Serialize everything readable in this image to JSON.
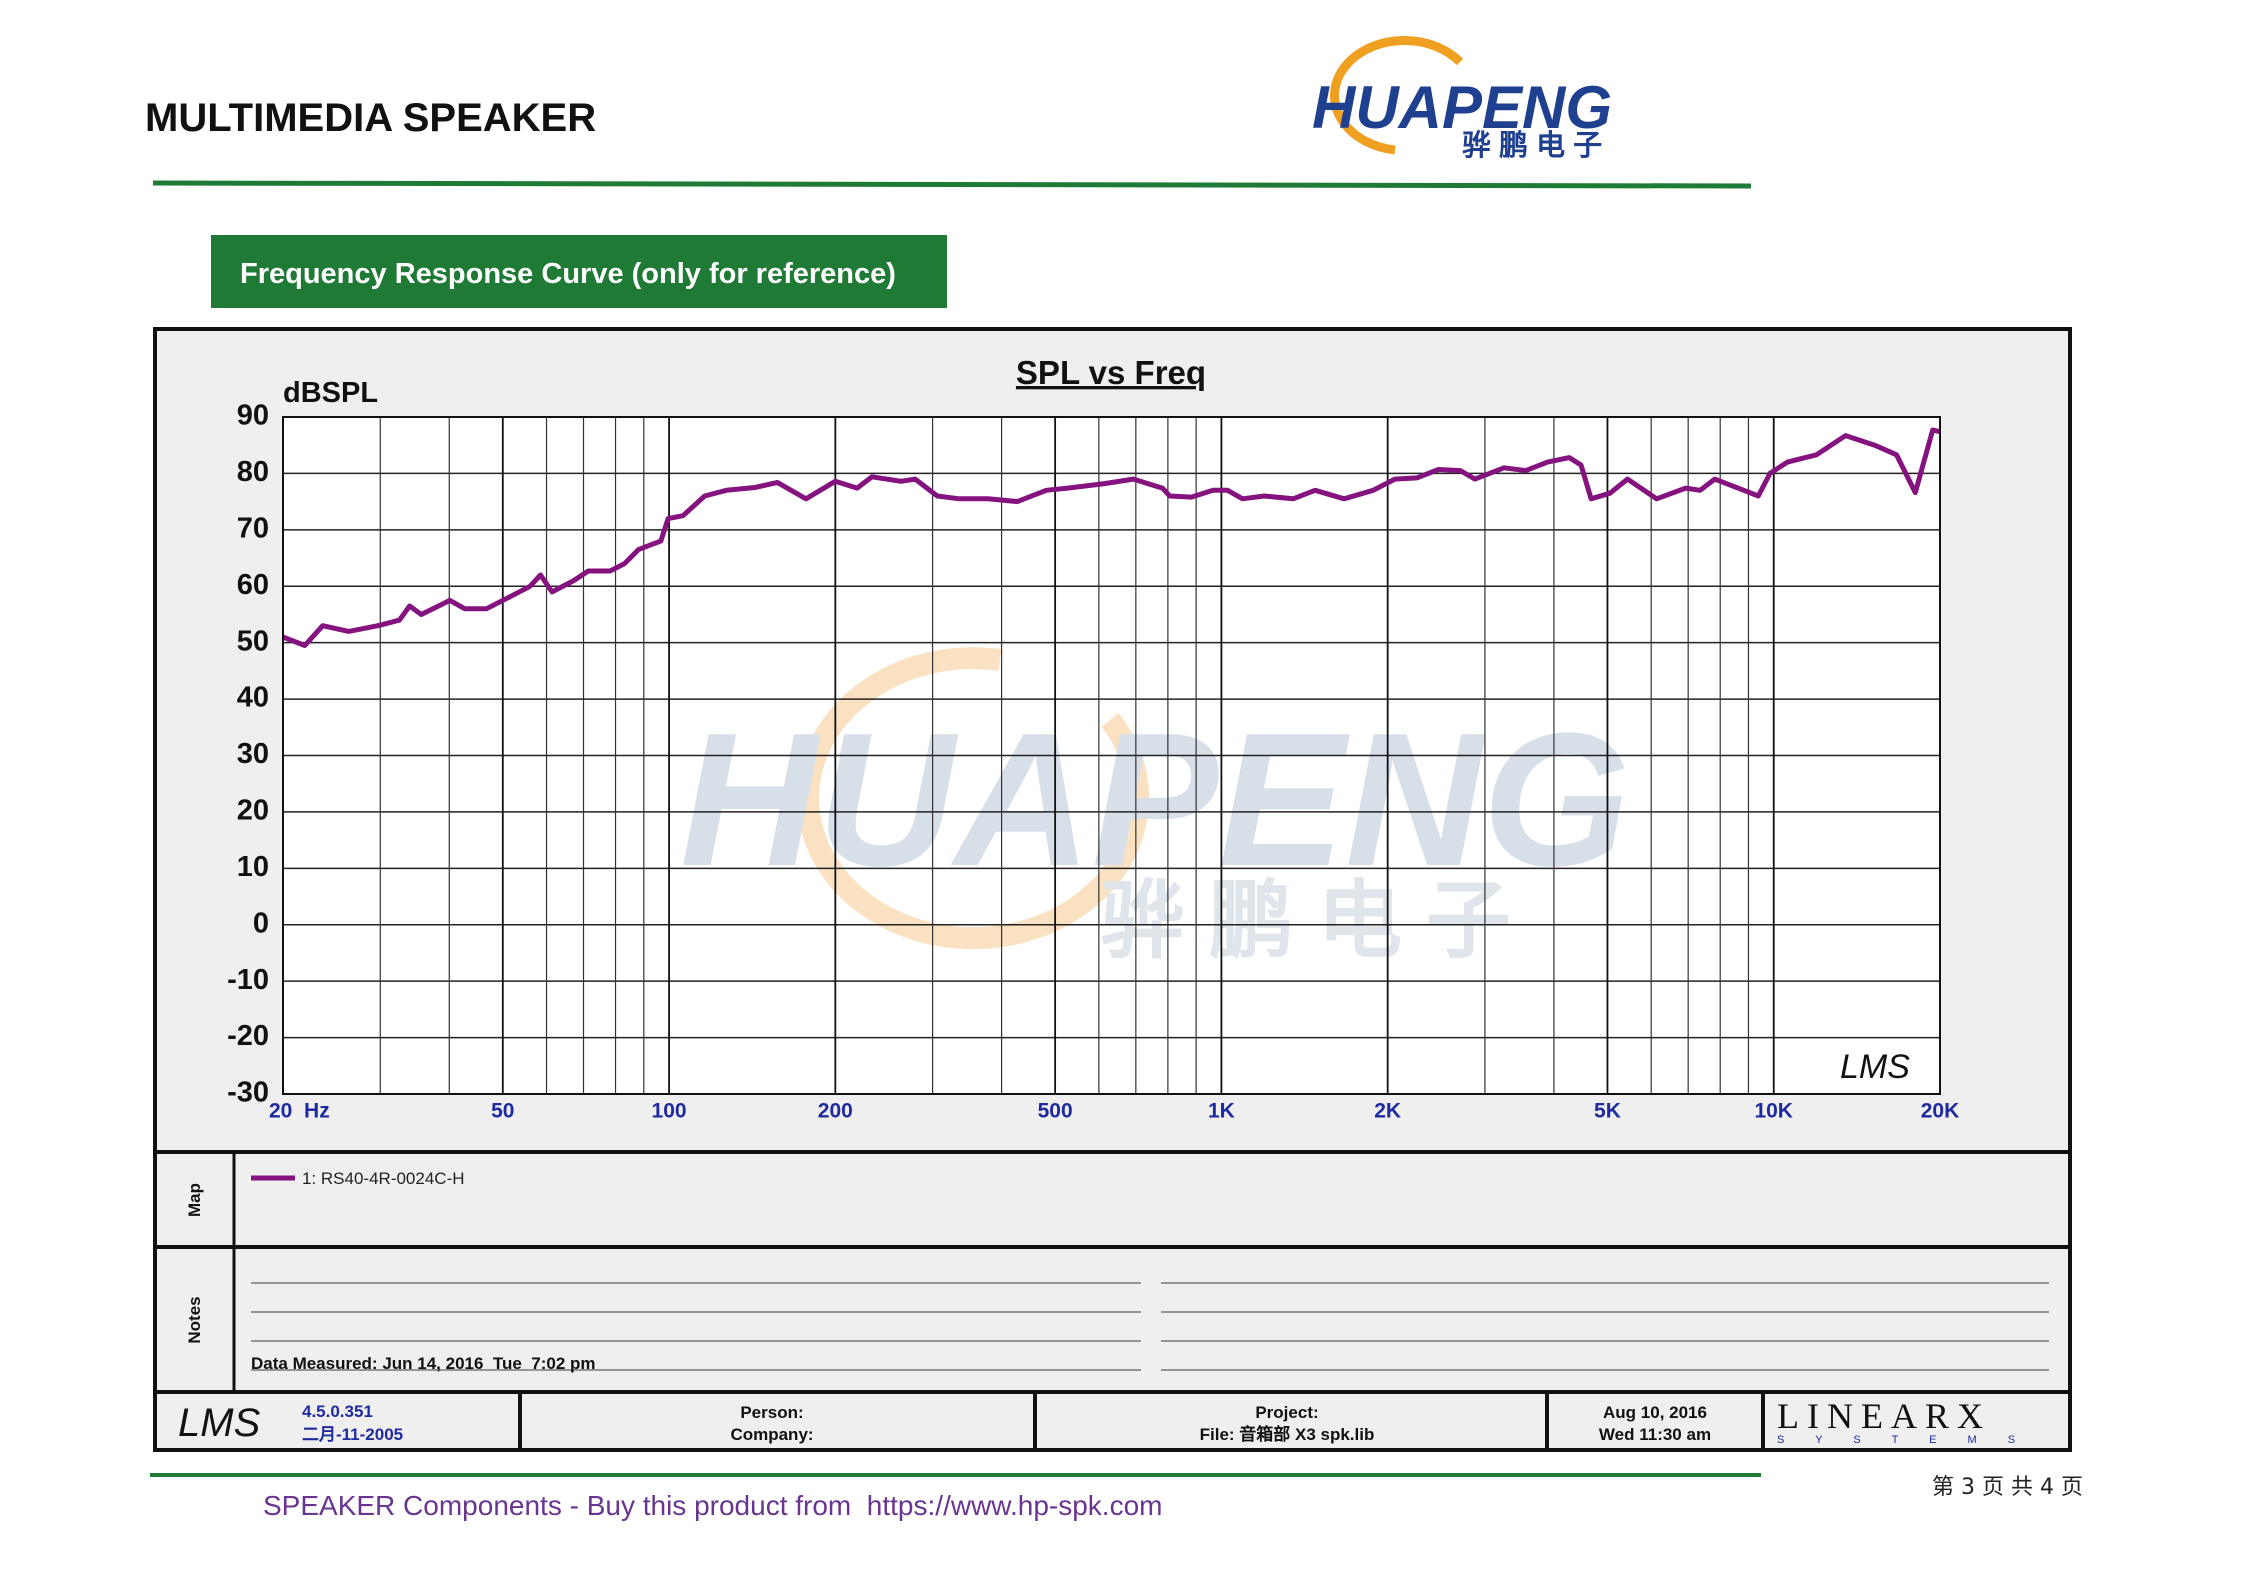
{
  "header": {
    "title": "MULTIMEDIA SPEAKER",
    "logo": "HUAPENG",
    "logo_cn": "骅 鹏 电 子"
  },
  "section_title": "Frequency Response Curve (only for reference)",
  "chart_data": {
    "type": "line",
    "title": "SPL vs Freq",
    "y_label": "dBSPL",
    "x_scale": "log",
    "minor_grid": true,
    "annotation": "LMS",
    "xlim": [
      20,
      20000
    ],
    "ylim": [
      -30,
      90
    ],
    "xticks": [
      {
        "value": 20,
        "label": "20  Hz"
      },
      50,
      100,
      200,
      500,
      {
        "value": 1000,
        "label": "1K"
      },
      {
        "value": 2000,
        "label": "2K"
      },
      {
        "value": 5000,
        "label": "5K"
      },
      {
        "value": 10000,
        "label": "10K"
      },
      {
        "value": 20000,
        "label": "20K"
      }
    ],
    "yticks": [
      -30,
      -20,
      -10,
      0,
      10,
      20,
      30,
      40,
      50,
      60,
      70,
      80,
      90
    ],
    "x": [
      20,
      21.9,
      23.6,
      26.3,
      29.7,
      32.5,
      33.9,
      35.6,
      40.1,
      42.7,
      46.7,
      51.2,
      56,
      58.5,
      61.4,
      67.2,
      71.4,
      78.2,
      83,
      88,
      96.6,
      99.6,
      106,
      116,
      127,
      143,
      157,
      177,
      200,
      219,
      233,
      263,
      279,
      306,
      335,
      378,
      427,
      482,
      527,
      614,
      693,
      782,
      806,
      882,
      966,
      1026,
      1092,
      1195,
      1349,
      1478,
      1668,
      1882,
      2061,
      2258,
      2472,
      2708,
      2877,
      3249,
      3557,
      3895,
      4265,
      4477,
      4671,
      5053,
      5436,
      6137,
      6929,
      7358,
      7818,
      8827,
      9376,
      9845,
      10586,
      11953,
      13494,
      15235,
      16681,
      18040,
      19400,
      20000
    ],
    "series": [
      {
        "name": "1: RS40-4R-0024C-H",
        "color": "#85137f",
        "values": [
          51,
          49.5,
          53,
          52,
          53,
          54,
          56.5,
          55,
          57.5,
          56,
          56,
          58,
          60,
          62,
          59,
          61,
          62.7,
          62.7,
          64,
          66.5,
          68,
          72,
          72.5,
          76,
          77,
          77.5,
          78.4,
          75.5,
          78.6,
          77.4,
          79.4,
          78.6,
          79,
          76,
          75.5,
          75.5,
          75,
          77,
          77.4,
          78.2,
          79,
          77.4,
          76,
          75.8,
          77,
          77,
          75.5,
          76,
          75.5,
          77,
          75.5,
          77,
          79,
          79.2,
          80.7,
          80.5,
          79,
          81,
          80.5,
          82,
          82.8,
          81.5,
          75.5,
          76.5,
          79,
          75.5,
          77.4,
          77,
          79,
          77,
          76,
          80,
          82,
          83.3,
          86.7,
          85,
          83.3,
          76.6,
          87.7,
          87.4
        ]
      }
    ]
  },
  "map_panel": {
    "label": "Map"
  },
  "notes_panel": {
    "label": "Notes",
    "measured": "Data Measured: Jun 14, 2016  Tue  7:02 pm"
  },
  "info_table": {
    "lms": "LMS",
    "version": "4.5.0.351",
    "version_date": "二月-11-2005",
    "person": "Person:",
    "company": "Company:",
    "project": "Project:",
    "file": "File: 音箱部 X3 spk.lib",
    "date": "Aug 10, 2016",
    "time": "Wed 11:30 am",
    "brand": "LINEARX",
    "brand_sub": "S Y S T E M S"
  },
  "footer": {
    "text": "SPEAKER Components - Buy this product from  https://www.hp-spk.com",
    "page": "第 3 页 共 4 页"
  }
}
